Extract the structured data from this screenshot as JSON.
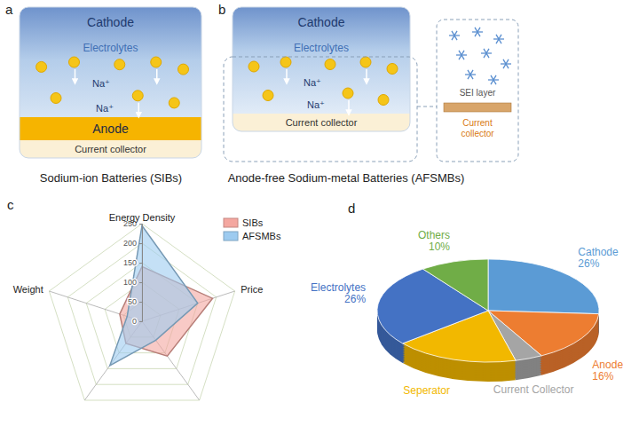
{
  "diagrams": [
    {
      "panel_label": "a",
      "cathode": "Cathode",
      "electrolytes": "Electrolytes",
      "ions": [
        "Na⁺",
        "Na⁺"
      ],
      "anode": "Anode",
      "current_collector": "Current collector",
      "caption": "Sodium-ion Batteries (SIBs)"
    },
    {
      "panel_label": "b",
      "cathode": "Cathode",
      "electrolytes": "Electrolytes",
      "ions": [
        "Na⁺",
        "Na⁺"
      ],
      "current_collector": "Current collector",
      "caption": "Anode-free Sodium-metal Batteries (AFSMBs)",
      "inset": {
        "sei_layer": "SEI layer",
        "current_collector": "Current collector"
      }
    }
  ],
  "chart_data": [
    {
      "type": "radar",
      "panel_label": "c",
      "categories": [
        "Energy Density",
        "Price",
        null,
        null,
        "Weight"
      ],
      "series": [
        {
          "name": "SIBs",
          "color": "#f4a7a0",
          "values": [
            140,
            190,
            110,
            70,
            60
          ]
        },
        {
          "name": "AFSMBs",
          "color": "#9dcbf0",
          "values": [
            245,
            150,
            60,
            140,
            40
          ]
        }
      ],
      "ylim": [
        0,
        250
      ],
      "yticks": [
        0,
        50,
        100,
        150,
        200,
        250
      ],
      "grid": true,
      "legend": "top-right"
    },
    {
      "type": "pie",
      "panel_label": "d",
      "categories": [
        "Cathode",
        "Anode",
        "Current Collector",
        "Seperator",
        "Electrolytes",
        "Others"
      ],
      "values": [
        26,
        16,
        4,
        18,
        26,
        10
      ],
      "value_labels": [
        "26%",
        "16%",
        null,
        null,
        "26%",
        "10%"
      ],
      "colors": [
        "#5b9bd5",
        "#ed7d31",
        "#a5a5a5",
        "#f2b800",
        "#4472c4",
        "#70ad47"
      ],
      "data_labels": true
    }
  ]
}
